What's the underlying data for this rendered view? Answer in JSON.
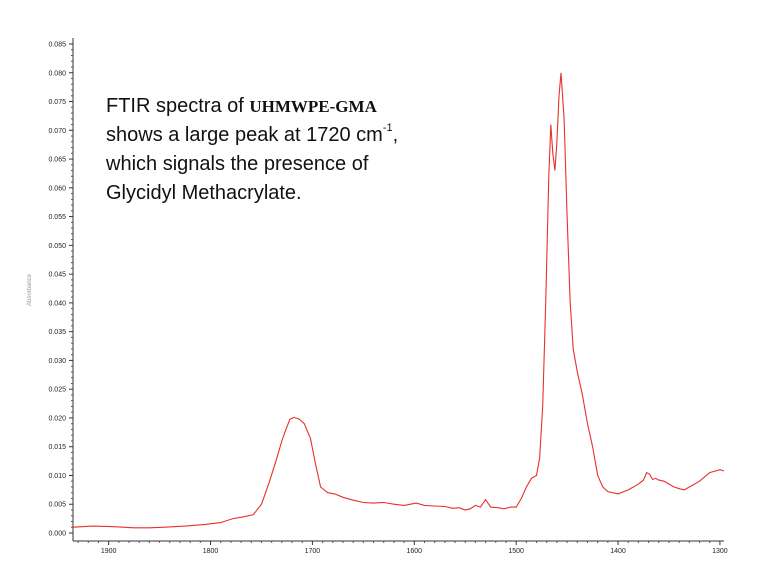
{
  "chart_data": {
    "type": "line",
    "ylabel": "Absorbance",
    "xlabel": "",
    "x_reversed": true,
    "xlim": [
      1935,
      1296
    ],
    "ylim": [
      0,
      0.085
    ],
    "x_ticks": [
      1900,
      1800,
      1700,
      1600,
      1500,
      1400,
      1300
    ],
    "y_ticks": [
      "0.000",
      "0.005",
      "0.010",
      "0.015",
      "0.020",
      "0.025",
      "0.030",
      "0.035",
      "0.040",
      "0.045",
      "0.050",
      "0.055",
      "0.060",
      "0.065",
      "0.070",
      "0.075",
      "0.080",
      "0.085"
    ],
    "line_color": "#e8302a",
    "grid": false,
    "series": [
      {
        "x": [
          1935,
          1915,
          1895,
          1875,
          1860,
          1845,
          1825,
          1805,
          1790,
          1778,
          1768,
          1758,
          1750,
          1742,
          1735,
          1730,
          1726,
          1722,
          1718,
          1713,
          1708,
          1702,
          1697,
          1692,
          1685,
          1678,
          1670,
          1660,
          1650,
          1640,
          1630,
          1620,
          1610,
          1598,
          1590,
          1580,
          1570,
          1562,
          1556,
          1550,
          1545,
          1540,
          1535,
          1530,
          1525,
          1518,
          1512,
          1505,
          1500,
          1495,
          1490,
          1485,
          1480,
          1477,
          1474,
          1471,
          1468,
          1466,
          1464,
          1462,
          1460,
          1458,
          1456,
          1453,
          1450,
          1447,
          1444,
          1440,
          1435,
          1430,
          1425,
          1420,
          1415,
          1410,
          1400,
          1390,
          1380,
          1375,
          1372,
          1369,
          1366,
          1363,
          1360,
          1355,
          1350,
          1345,
          1340,
          1335,
          1330,
          1320,
          1310,
          1300,
          1296
        ],
        "y": [
          0.001,
          0.0012,
          0.0011,
          0.0009,
          0.0009,
          0.001,
          0.0012,
          0.0015,
          0.0018,
          0.0025,
          0.0028,
          0.0032,
          0.005,
          0.009,
          0.013,
          0.016,
          0.018,
          0.0198,
          0.0201,
          0.0198,
          0.019,
          0.0165,
          0.012,
          0.008,
          0.007,
          0.0068,
          0.0062,
          0.0057,
          0.0053,
          0.0052,
          0.0053,
          0.005,
          0.0048,
          0.0052,
          0.0048,
          0.0047,
          0.0046,
          0.0043,
          0.0044,
          0.004,
          0.0042,
          0.0048,
          0.0045,
          0.0058,
          0.0045,
          0.0044,
          0.0042,
          0.0045,
          0.0045,
          0.006,
          0.008,
          0.0095,
          0.01,
          0.013,
          0.022,
          0.04,
          0.062,
          0.071,
          0.066,
          0.063,
          0.068,
          0.076,
          0.08,
          0.072,
          0.055,
          0.04,
          0.032,
          0.028,
          0.024,
          0.019,
          0.015,
          0.01,
          0.008,
          0.0072,
          0.0068,
          0.0075,
          0.0085,
          0.0092,
          0.0105,
          0.0102,
          0.0093,
          0.0095,
          0.0092,
          0.009,
          0.0085,
          0.008,
          0.0077,
          0.0075,
          0.008,
          0.009,
          0.0105,
          0.011,
          0.0108
        ]
      }
    ]
  },
  "annotation": {
    "line1_prefix": "FTIR spectra of ",
    "line1_bold": "UHMWPE-GMA",
    "line2_prefix": "shows a large peak at 1720 cm",
    "line2_sup": "-1",
    "line2_suffix": ",",
    "line3": "which signals the presence of",
    "line4": "Glycidyl Methacrylate."
  }
}
